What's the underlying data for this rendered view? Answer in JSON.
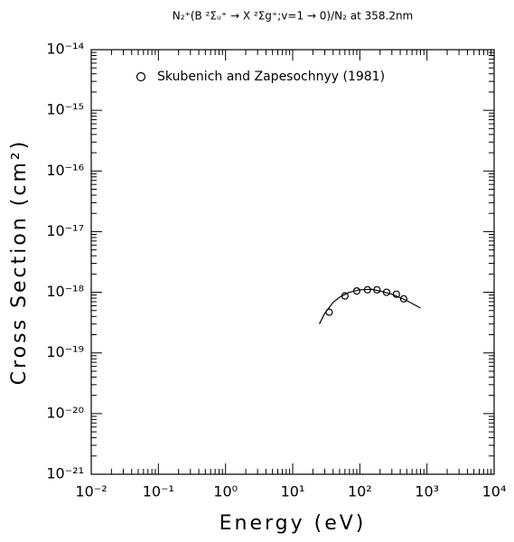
{
  "chart_data": {
    "type": "scatter",
    "title": "N₂⁺(B ²Σᵤ⁺ → X ²Σg⁺;v=1 → 0)/N₂ at 358.2nm",
    "xlabel": "Energy (eV)",
    "ylabel": "Cross Section (cm²)",
    "xscale": "log",
    "yscale": "log",
    "xlim": [
      0.01,
      10000
    ],
    "ylim": [
      1e-21,
      1e-14
    ],
    "xticks": [
      {
        "value": 0.01,
        "label": "10⁻²"
      },
      {
        "value": 0.1,
        "label": "10⁻¹"
      },
      {
        "value": 1,
        "label": "10⁰"
      },
      {
        "value": 10,
        "label": "10¹"
      },
      {
        "value": 100,
        "label": "10²"
      },
      {
        "value": 1000,
        "label": "10³"
      },
      {
        "value": 10000,
        "label": "10⁴"
      }
    ],
    "yticks": [
      {
        "value": 1e-21,
        "label": "10⁻²¹"
      },
      {
        "value": 1e-20,
        "label": "10⁻²⁰"
      },
      {
        "value": 1e-19,
        "label": "10⁻¹⁹"
      },
      {
        "value": 1e-18,
        "label": "10⁻¹⁸"
      },
      {
        "value": 1e-17,
        "label": "10⁻¹⁷"
      },
      {
        "value": 1e-16,
        "label": "10⁻¹⁶"
      },
      {
        "value": 1e-15,
        "label": "10⁻¹⁵"
      },
      {
        "value": 1e-14,
        "label": "10⁻¹⁴"
      }
    ],
    "legend": "upper left",
    "series": [
      {
        "name": "Skubenich and Zapesochnyy (1981)",
        "marker": "circle",
        "color": "#000000",
        "x": [
          35,
          60,
          90,
          130,
          180,
          250,
          350,
          450
        ],
        "values": [
          4.7e-19,
          8.7e-19,
          1.05e-18,
          1.1e-18,
          1.1e-18,
          1e-18,
          9.3e-19,
          7.8e-19
        ]
      }
    ],
    "lines": [
      {
        "color": "#000000",
        "x": [
          25,
          30,
          40,
          50,
          70,
          100,
          150,
          200,
          300,
          500,
          800
        ],
        "values": [
          3e-19,
          4.5e-19,
          6.8e-19,
          8.3e-19,
          1e-18,
          1.1e-18,
          1.12e-18,
          1.05e-18,
          9.3e-19,
          7.3e-19,
          5.5e-19
        ]
      }
    ]
  }
}
